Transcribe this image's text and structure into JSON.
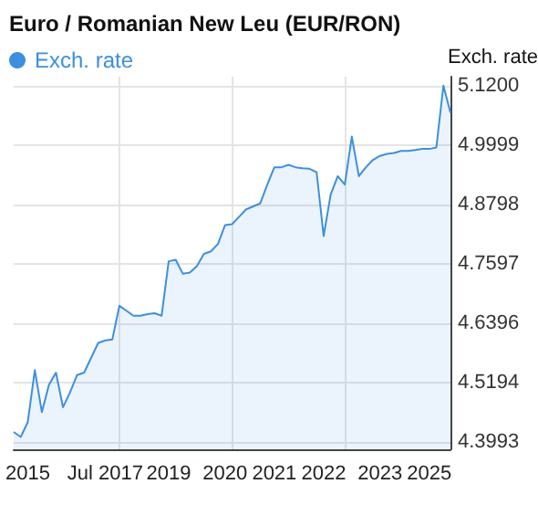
{
  "chart_data": {
    "type": "area",
    "title": "Euro / Romanian New Leu (EUR/RON)",
    "ylabel": "Exch. rate",
    "legend": "top left",
    "grid": true,
    "marker": "none",
    "categories": [
      null,
      null,
      "2015",
      null,
      null,
      null,
      null,
      null,
      null,
      null,
      null,
      null,
      null,
      "Jul 2017",
      null,
      null,
      null,
      null,
      null,
      null,
      null,
      null,
      "2019",
      null,
      null,
      null,
      null,
      null,
      null,
      null,
      "2020",
      null,
      null,
      null,
      null,
      null,
      null,
      "2021",
      null,
      null,
      null,
      null,
      null,
      null,
      "2022",
      null,
      null,
      null,
      null,
      null,
      null,
      null,
      "2023",
      null,
      null,
      null,
      null,
      null,
      null,
      "2025",
      null,
      null,
      null
    ],
    "ylim": [
      4.385,
      5.138
    ],
    "yticks": [
      {
        "value": 4.3993,
        "label": "4.3993"
      },
      {
        "value": 4.5194,
        "label": "4.5194"
      },
      {
        "value": 4.6396,
        "label": "4.6396"
      },
      {
        "value": 4.7597,
        "label": "4.7597"
      },
      {
        "value": 4.8798,
        "label": "4.8798"
      },
      {
        "value": 4.9999,
        "label": "4.9999"
      },
      {
        "value": 5.12,
        "label": "5.1200"
      }
    ],
    "series": [
      {
        "name": "Exch. rate",
        "color": "#3d8fe0",
        "values": [
          4.42,
          4.41,
          4.44,
          4.545,
          4.46,
          4.515,
          4.54,
          4.47,
          4.5,
          4.535,
          4.54,
          4.57,
          4.6,
          4.605,
          4.607,
          4.675,
          4.665,
          4.655,
          4.655,
          4.658,
          4.66,
          4.655,
          4.765,
          4.768,
          4.74,
          4.742,
          4.755,
          4.78,
          4.785,
          4.8,
          4.838,
          4.84,
          4.855,
          4.87,
          4.876,
          4.882,
          4.92,
          4.955,
          4.955,
          4.96,
          4.955,
          4.953,
          4.952,
          4.945,
          4.816,
          4.9,
          4.937,
          4.92,
          5.017,
          4.937,
          4.955,
          4.97,
          4.978,
          4.982,
          4.984,
          4.988,
          4.988,
          4.99,
          4.992,
          4.992,
          4.995,
          5.12,
          5.065
        ]
      }
    ]
  }
}
